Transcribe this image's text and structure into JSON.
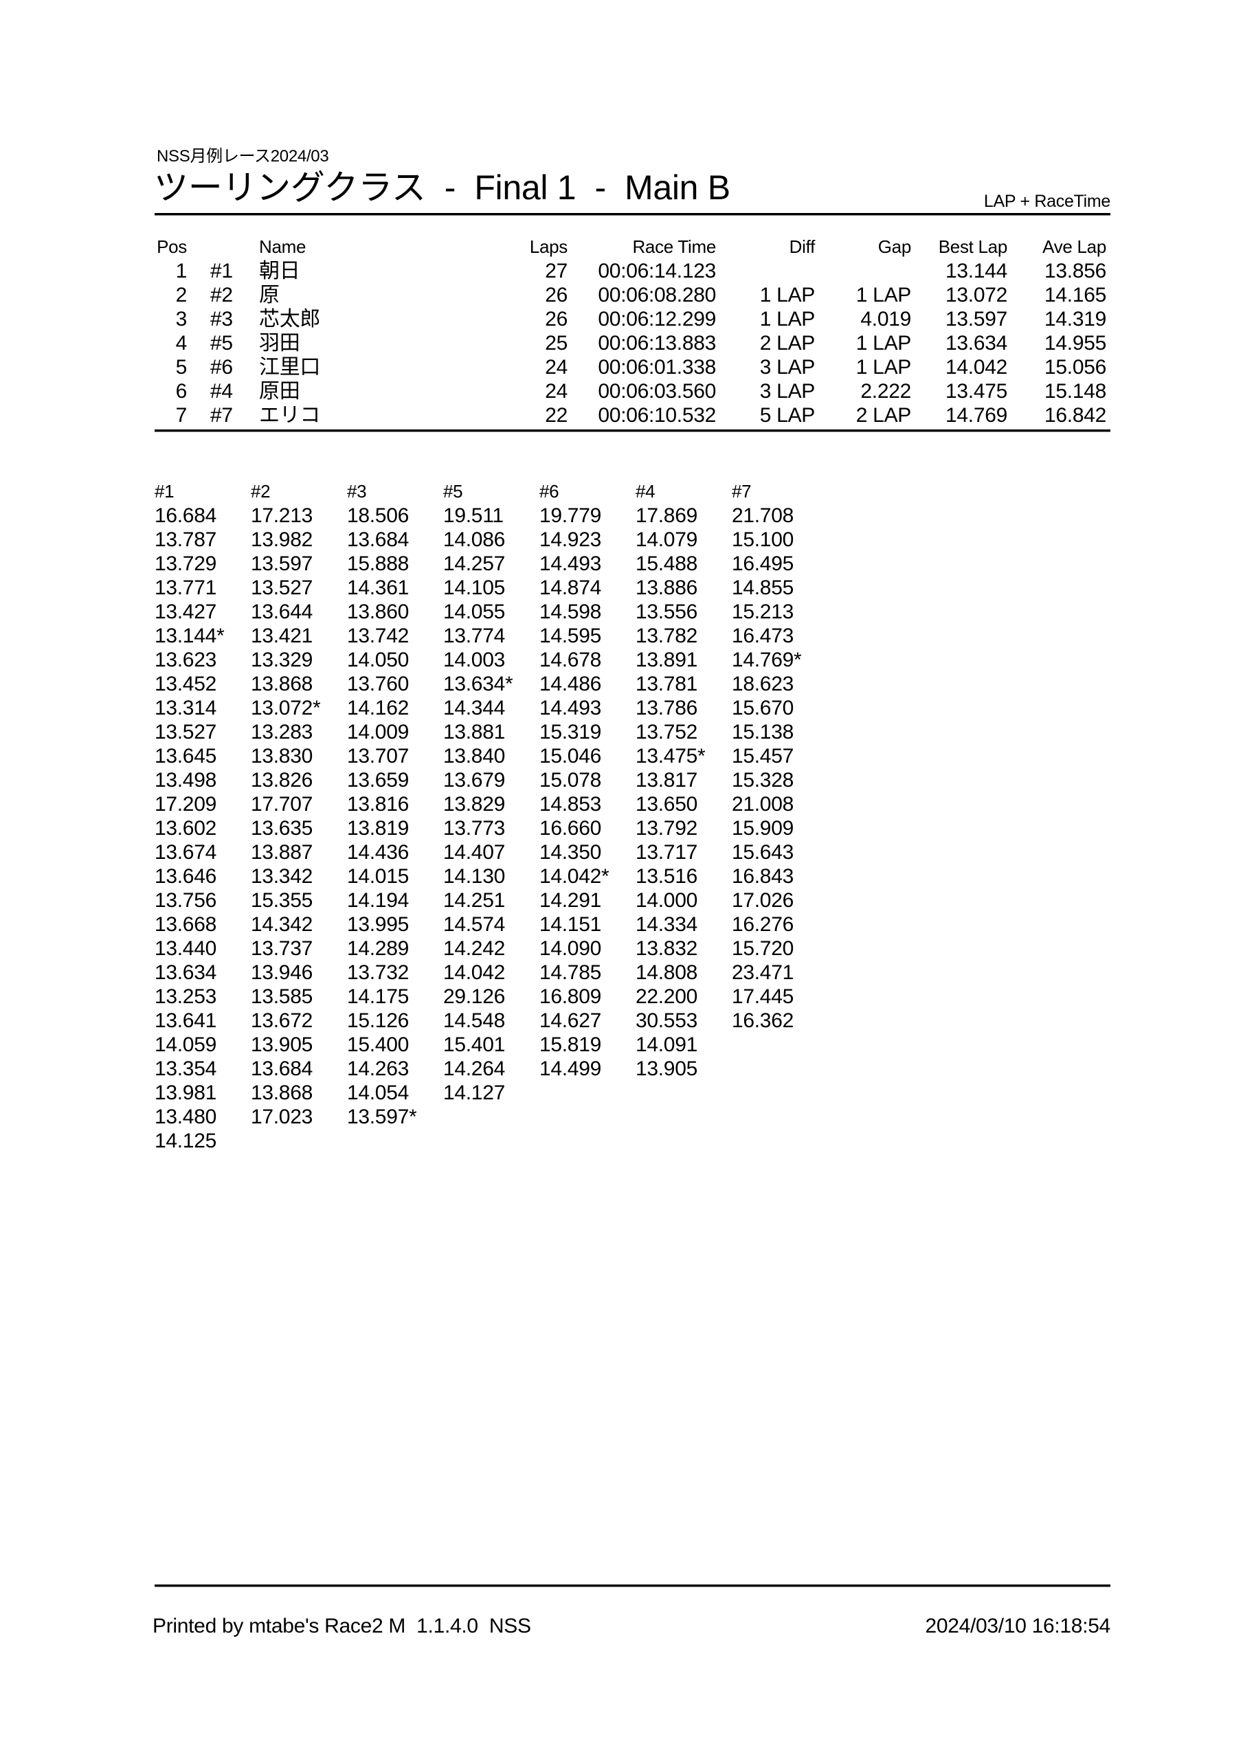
{
  "header": {
    "event": "NSS月例レース2024/03",
    "title": "ツーリングクラス  -  Final 1  -  Main B",
    "timing_mode": "LAP + RaceTime"
  },
  "results": {
    "headers": {
      "pos": "Pos",
      "no": "",
      "name": "Name",
      "laps": "Laps",
      "race_time": "Race Time",
      "diff": "Diff",
      "gap": "Gap",
      "best_lap": "Best Lap",
      "ave_lap": "Ave Lap"
    },
    "rows": [
      {
        "pos": "1",
        "no": "#1",
        "name": "朝日",
        "laps": "27",
        "race_time": "00:06:14.123",
        "diff": "",
        "gap": "",
        "best_lap": "13.144",
        "ave_lap": "13.856"
      },
      {
        "pos": "2",
        "no": "#2",
        "name": "原",
        "laps": "26",
        "race_time": "00:06:08.280",
        "diff": "1 LAP",
        "gap": "1 LAP",
        "best_lap": "13.072",
        "ave_lap": "14.165"
      },
      {
        "pos": "3",
        "no": "#3",
        "name": "芯太郎",
        "laps": "26",
        "race_time": "00:06:12.299",
        "diff": "1 LAP",
        "gap": "4.019",
        "best_lap": "13.597",
        "ave_lap": "14.319"
      },
      {
        "pos": "4",
        "no": "#5",
        "name": "羽田",
        "laps": "25",
        "race_time": "00:06:13.883",
        "diff": "2 LAP",
        "gap": "1 LAP",
        "best_lap": "13.634",
        "ave_lap": "14.955"
      },
      {
        "pos": "5",
        "no": "#6",
        "name": "江里口",
        "laps": "24",
        "race_time": "00:06:01.338",
        "diff": "3 LAP",
        "gap": "1 LAP",
        "best_lap": "14.042",
        "ave_lap": "15.056"
      },
      {
        "pos": "6",
        "no": "#4",
        "name": "原田",
        "laps": "24",
        "race_time": "00:06:03.560",
        "diff": "3 LAP",
        "gap": "2.222",
        "best_lap": "13.475",
        "ave_lap": "15.148"
      },
      {
        "pos": "7",
        "no": "#7",
        "name": "エリコ",
        "laps": "22",
        "race_time": "00:06:10.532",
        "diff": "5 LAP",
        "gap": "2 LAP",
        "best_lap": "14.769",
        "ave_lap": "16.842"
      }
    ]
  },
  "lap_chart": {
    "columns": [
      {
        "car": "#1",
        "laps": [
          "16.684",
          "13.787",
          "13.729",
          "13.771",
          "13.427",
          "13.144*",
          "13.623",
          "13.452",
          "13.314",
          "13.527",
          "13.645",
          "13.498",
          "17.209",
          "13.602",
          "13.674",
          "13.646",
          "13.756",
          "13.668",
          "13.440",
          "13.634",
          "13.253",
          "13.641",
          "14.059",
          "13.354",
          "13.981",
          "13.480",
          "14.125"
        ]
      },
      {
        "car": "#2",
        "laps": [
          "17.213",
          "13.982",
          "13.597",
          "13.527",
          "13.644",
          "13.421",
          "13.329",
          "13.868",
          "13.072*",
          "13.283",
          "13.830",
          "13.826",
          "17.707",
          "13.635",
          "13.887",
          "13.342",
          "15.355",
          "14.342",
          "13.737",
          "13.946",
          "13.585",
          "13.672",
          "13.905",
          "13.684",
          "13.868",
          "17.023"
        ]
      },
      {
        "car": "#3",
        "laps": [
          "18.506",
          "13.684",
          "15.888",
          "14.361",
          "13.860",
          "13.742",
          "14.050",
          "13.760",
          "14.162",
          "14.009",
          "13.707",
          "13.659",
          "13.816",
          "13.819",
          "14.436",
          "14.015",
          "14.194",
          "13.995",
          "14.289",
          "13.732",
          "14.175",
          "15.126",
          "15.400",
          "14.263",
          "14.054",
          "13.597*"
        ]
      },
      {
        "car": "#5",
        "laps": [
          "19.511",
          "14.086",
          "14.257",
          "14.105",
          "14.055",
          "13.774",
          "14.003",
          "13.634*",
          "14.344",
          "13.881",
          "13.840",
          "13.679",
          "13.829",
          "13.773",
          "14.407",
          "14.130",
          "14.251",
          "14.574",
          "14.242",
          "14.042",
          "29.126",
          "14.548",
          "15.401",
          "14.264",
          "14.127"
        ]
      },
      {
        "car": "#6",
        "laps": [
          "19.779",
          "14.923",
          "14.493",
          "14.874",
          "14.598",
          "14.595",
          "14.678",
          "14.486",
          "14.493",
          "15.319",
          "15.046",
          "15.078",
          "14.853",
          "16.660",
          "14.350",
          "14.042*",
          "14.291",
          "14.151",
          "14.090",
          "14.785",
          "16.809",
          "14.627",
          "15.819",
          "14.499"
        ]
      },
      {
        "car": "#4",
        "laps": [
          "17.869",
          "14.079",
          "15.488",
          "13.886",
          "13.556",
          "13.782",
          "13.891",
          "13.781",
          "13.786",
          "13.752",
          "13.475*",
          "13.817",
          "13.650",
          "13.792",
          "13.717",
          "13.516",
          "14.000",
          "14.334",
          "13.832",
          "14.808",
          "22.200",
          "30.553",
          "14.091",
          "13.905"
        ]
      },
      {
        "car": "#7",
        "laps": [
          "21.708",
          "15.100",
          "16.495",
          "14.855",
          "15.213",
          "16.473",
          "14.769*",
          "18.623",
          "15.670",
          "15.138",
          "15.457",
          "15.328",
          "21.008",
          "15.909",
          "15.643",
          "16.843",
          "17.026",
          "16.276",
          "15.720",
          "23.471",
          "17.445",
          "16.362"
        ]
      }
    ]
  },
  "footer": {
    "printed_by": "Printed by mtabe's Race2 M  1.1.4.0  NSS",
    "datetime": "2024/03/10 16:18:54"
  }
}
